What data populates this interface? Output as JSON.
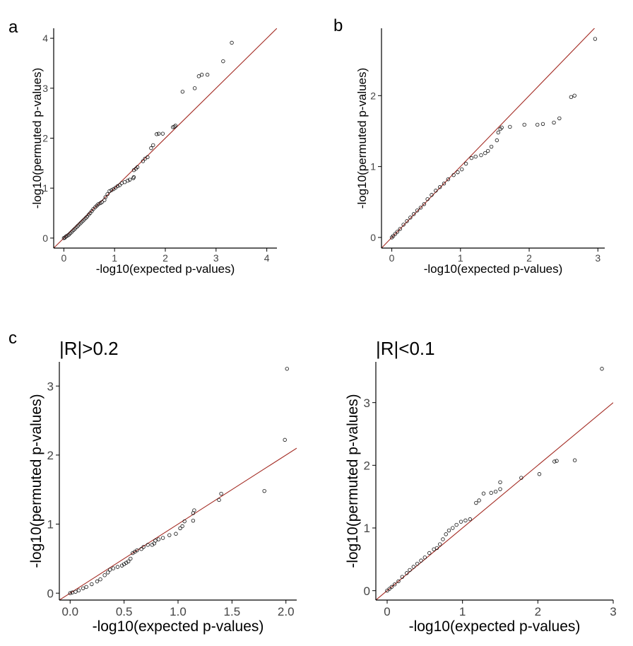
{
  "figure": {
    "panel_labels": [
      "a",
      "b",
      "c"
    ]
  },
  "chart_data": [
    {
      "type": "scatter",
      "title": "",
      "xlabel": "-log10(expected p-values)",
      "ylabel": "-log10(permuted p-values)",
      "xlim": [
        -0.2,
        4.2
      ],
      "ylim": [
        -0.2,
        4.2
      ],
      "xticks": [
        0,
        1,
        2,
        3,
        4
      ],
      "yticks": [
        0,
        1,
        2,
        3,
        4
      ],
      "reference_line": {
        "slope": 1,
        "intercept": 0,
        "color": "#a32a22"
      },
      "points": [
        [
          3.31,
          3.91
        ],
        [
          3.14,
          3.54
        ],
        [
          2.83,
          3.27
        ],
        [
          2.72,
          3.27
        ],
        [
          2.66,
          3.24
        ],
        [
          2.58,
          3.0
        ],
        [
          2.34,
          2.93
        ],
        [
          2.2,
          2.25
        ],
        [
          2.18,
          2.23
        ],
        [
          2.15,
          2.22
        ],
        [
          1.95,
          2.09
        ],
        [
          1.87,
          2.09
        ],
        [
          1.83,
          2.08
        ],
        [
          1.76,
          1.86
        ],
        [
          1.72,
          1.8
        ],
        [
          1.65,
          1.62
        ],
        [
          1.6,
          1.59
        ],
        [
          1.56,
          1.54
        ],
        [
          1.45,
          1.42
        ],
        [
          1.42,
          1.39
        ],
        [
          1.38,
          1.36
        ],
        [
          1.38,
          1.22
        ],
        [
          1.37,
          1.2
        ],
        [
          1.3,
          1.17
        ],
        [
          1.26,
          1.15
        ],
        [
          1.2,
          1.12
        ],
        [
          1.14,
          1.1
        ],
        [
          1.1,
          1.06
        ],
        [
          1.06,
          1.04
        ],
        [
          1.02,
          1.01
        ],
        [
          0.98,
          0.98
        ],
        [
          0.94,
          0.96
        ],
        [
          0.9,
          0.94
        ],
        [
          0.86,
          0.88
        ],
        [
          0.82,
          0.82
        ],
        [
          0.8,
          0.76
        ],
        [
          0.75,
          0.72
        ],
        [
          0.72,
          0.7
        ],
        [
          0.68,
          0.68
        ],
        [
          0.65,
          0.65
        ],
        [
          0.62,
          0.62
        ],
        [
          0.58,
          0.58
        ],
        [
          0.55,
          0.54
        ],
        [
          0.52,
          0.5
        ],
        [
          0.49,
          0.47
        ],
        [
          0.46,
          0.43
        ],
        [
          0.43,
          0.4
        ],
        [
          0.4,
          0.37
        ],
        [
          0.37,
          0.34
        ],
        [
          0.34,
          0.31
        ],
        [
          0.31,
          0.28
        ],
        [
          0.28,
          0.25
        ],
        [
          0.25,
          0.22
        ],
        [
          0.22,
          0.19
        ],
        [
          0.19,
          0.16
        ],
        [
          0.16,
          0.13
        ],
        [
          0.13,
          0.1
        ],
        [
          0.1,
          0.07
        ],
        [
          0.07,
          0.05
        ],
        [
          0.04,
          0.03
        ],
        [
          0.02,
          0.01
        ],
        [
          0.0,
          0.0
        ]
      ]
    },
    {
      "type": "scatter",
      "title": "",
      "xlabel": "-log10(expected p-values)",
      "ylabel": "-log10(permuted p-values)",
      "xlim": [
        -0.15,
        3.1
      ],
      "ylim": [
        -0.15,
        2.95
      ],
      "xticks": [
        0,
        1,
        2,
        3
      ],
      "yticks": [
        0,
        1,
        2
      ],
      "reference_line": {
        "slope": 1,
        "intercept": 0,
        "color": "#a32a22"
      },
      "points": [
        [
          2.96,
          2.8
        ],
        [
          2.66,
          2.0
        ],
        [
          2.61,
          1.98
        ],
        [
          2.44,
          1.68
        ],
        [
          2.36,
          1.62
        ],
        [
          2.2,
          1.6
        ],
        [
          2.12,
          1.59
        ],
        [
          1.93,
          1.59
        ],
        [
          1.72,
          1.56
        ],
        [
          1.6,
          1.55
        ],
        [
          1.58,
          1.53
        ],
        [
          1.55,
          1.48
        ],
        [
          1.53,
          1.37
        ],
        [
          1.45,
          1.28
        ],
        [
          1.4,
          1.22
        ],
        [
          1.36,
          1.19
        ],
        [
          1.3,
          1.16
        ],
        [
          1.22,
          1.14
        ],
        [
          1.16,
          1.12
        ],
        [
          1.08,
          1.04
        ],
        [
          1.02,
          0.96
        ],
        [
          0.96,
          0.92
        ],
        [
          0.9,
          0.88
        ],
        [
          0.82,
          0.82
        ],
        [
          0.76,
          0.76
        ],
        [
          0.7,
          0.71
        ],
        [
          0.64,
          0.66
        ],
        [
          0.58,
          0.6
        ],
        [
          0.52,
          0.54
        ],
        [
          0.47,
          0.47
        ],
        [
          0.42,
          0.42
        ],
        [
          0.37,
          0.38
        ],
        [
          0.32,
          0.33
        ],
        [
          0.27,
          0.28
        ],
        [
          0.22,
          0.23
        ],
        [
          0.17,
          0.18
        ],
        [
          0.12,
          0.12
        ],
        [
          0.08,
          0.08
        ],
        [
          0.05,
          0.05
        ],
        [
          0.02,
          0.02
        ],
        [
          0.0,
          0.0
        ]
      ]
    },
    {
      "type": "scatter",
      "title": "|R|>0.2",
      "xlabel": "-log10(expected p-values)",
      "ylabel": "-log10(permuted p-values)",
      "xlim": [
        -0.1,
        2.1
      ],
      "ylim": [
        -0.1,
        3.35
      ],
      "xticks": [
        0.0,
        0.5,
        1.0,
        1.5,
        2.0
      ],
      "xtick_labels": [
        "0.0",
        "0.5",
        "1.0",
        "1.5",
        "2.0"
      ],
      "yticks": [
        0,
        1,
        2,
        3
      ],
      "reference_line": {
        "slope": 1,
        "intercept": 0,
        "color": "#a32a22"
      },
      "points": [
        [
          2.01,
          3.25
        ],
        [
          1.99,
          2.22
        ],
        [
          1.8,
          1.48
        ],
        [
          1.4,
          1.44
        ],
        [
          1.38,
          1.35
        ],
        [
          1.15,
          1.2
        ],
        [
          1.14,
          1.16
        ],
        [
          1.14,
          1.05
        ],
        [
          1.06,
          1.04
        ],
        [
          1.04,
          0.97
        ],
        [
          1.02,
          0.94
        ],
        [
          0.98,
          0.86
        ],
        [
          0.92,
          0.84
        ],
        [
          0.86,
          0.8
        ],
        [
          0.82,
          0.78
        ],
        [
          0.79,
          0.76
        ],
        [
          0.78,
          0.72
        ],
        [
          0.76,
          0.7
        ],
        [
          0.72,
          0.7
        ],
        [
          0.68,
          0.67
        ],
        [
          0.66,
          0.64
        ],
        [
          0.62,
          0.62
        ],
        [
          0.6,
          0.6
        ],
        [
          0.58,
          0.58
        ],
        [
          0.56,
          0.5
        ],
        [
          0.54,
          0.46
        ],
        [
          0.52,
          0.44
        ],
        [
          0.5,
          0.42
        ],
        [
          0.48,
          0.4
        ],
        [
          0.44,
          0.38
        ],
        [
          0.4,
          0.36
        ],
        [
          0.37,
          0.34
        ],
        [
          0.35,
          0.3
        ],
        [
          0.32,
          0.26
        ],
        [
          0.28,
          0.2
        ],
        [
          0.25,
          0.17
        ],
        [
          0.2,
          0.13
        ],
        [
          0.15,
          0.09
        ],
        [
          0.12,
          0.07
        ],
        [
          0.08,
          0.04
        ],
        [
          0.05,
          0.02
        ],
        [
          0.02,
          0.01
        ],
        [
          0.0,
          0.0
        ]
      ]
    },
    {
      "type": "scatter",
      "title": "|R|<0.1",
      "xlabel": "-log10(expected p-values)",
      "ylabel": "-log10(permuted p-values)",
      "xlim": [
        -0.15,
        3.0
      ],
      "ylim": [
        -0.15,
        3.65
      ],
      "xticks": [
        0,
        1,
        2,
        3
      ],
      "yticks": [
        0,
        1,
        2,
        3
      ],
      "reference_line": {
        "slope": 1,
        "intercept": 0,
        "color": "#a32a22"
      },
      "points": [
        [
          2.85,
          3.54
        ],
        [
          2.49,
          2.08
        ],
        [
          2.25,
          2.07
        ],
        [
          2.22,
          2.06
        ],
        [
          2.02,
          1.86
        ],
        [
          1.78,
          1.8
        ],
        [
          1.5,
          1.73
        ],
        [
          1.5,
          1.62
        ],
        [
          1.44,
          1.58
        ],
        [
          1.38,
          1.56
        ],
        [
          1.28,
          1.55
        ],
        [
          1.22,
          1.44
        ],
        [
          1.18,
          1.4
        ],
        [
          1.1,
          1.14
        ],
        [
          1.04,
          1.12
        ],
        [
          0.98,
          1.1
        ],
        [
          0.92,
          1.05
        ],
        [
          0.87,
          1.0
        ],
        [
          0.82,
          0.96
        ],
        [
          0.78,
          0.9
        ],
        [
          0.74,
          0.82
        ],
        [
          0.7,
          0.74
        ],
        [
          0.66,
          0.68
        ],
        [
          0.62,
          0.66
        ],
        [
          0.56,
          0.6
        ],
        [
          0.5,
          0.53
        ],
        [
          0.45,
          0.48
        ],
        [
          0.4,
          0.43
        ],
        [
          0.35,
          0.38
        ],
        [
          0.3,
          0.33
        ],
        [
          0.26,
          0.28
        ],
        [
          0.2,
          0.22
        ],
        [
          0.15,
          0.15
        ],
        [
          0.1,
          0.1
        ],
        [
          0.06,
          0.06
        ],
        [
          0.03,
          0.03
        ],
        [
          0.0,
          0.0
        ]
      ]
    }
  ]
}
